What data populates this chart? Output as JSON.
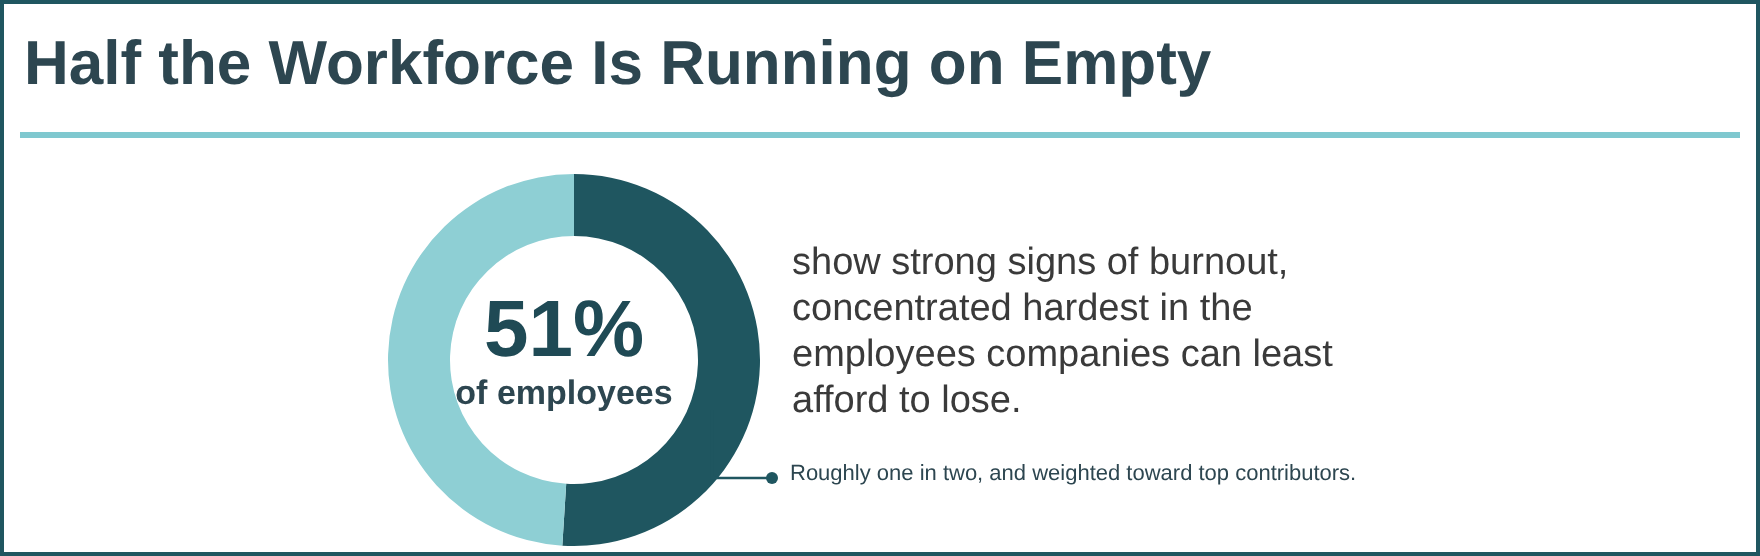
{
  "chart_data": {
    "type": "donut",
    "title": "Half the Workforce Is Running on Empty",
    "categories": [
      null,
      null
    ],
    "values": [
      51,
      49
    ],
    "colors": [
      "#1f5660",
      "#8ecfd4"
    ],
    "annotations": [
      "51%",
      "of employees",
      "show strong signs of burnout, concentrated hardest in the employees companies can least afford to lose.",
      "Roughly one in two, and weighted toward top contributors."
    ]
  }
}
